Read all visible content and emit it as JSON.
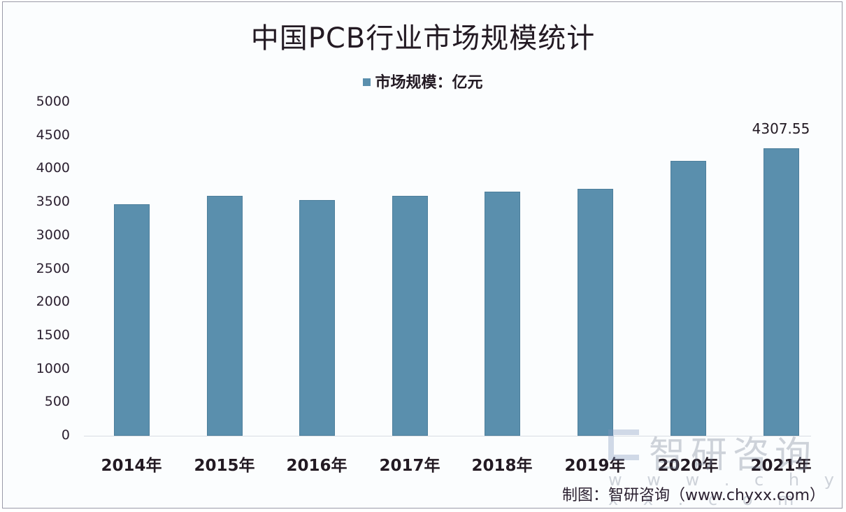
{
  "chart_data": {
    "type": "bar",
    "title": "中国PCB行业市场规模统计",
    "legend": [
      "市场规模：亿元"
    ],
    "legend_position": "top",
    "xlabel": "",
    "ylabel": "",
    "ylim": [
      0,
      5000
    ],
    "yticks": [
      "0",
      "500",
      "1000",
      "1500",
      "2000",
      "2500",
      "3000",
      "3500",
      "4000",
      "4500",
      "5000"
    ],
    "grid": false,
    "categories": [
      "2014年",
      "2015年",
      "2016年",
      "2017年",
      "2018年",
      "2019年",
      "2020年",
      "2021年"
    ],
    "series": [
      {
        "name": "市场规模：亿元",
        "values": [
          3470,
          3595,
          3533,
          3595,
          3658,
          3700,
          4120,
          4307.55
        ],
        "color": "#5a8fad"
      }
    ],
    "annotations": [
      {
        "category": "2021年",
        "text": "4307.55"
      }
    ]
  },
  "watermark": {
    "brand": "智研咨询",
    "url": "w w w . c h y x x . c o m"
  },
  "source": "制图：智研咨询（www.chyxx.com）"
}
